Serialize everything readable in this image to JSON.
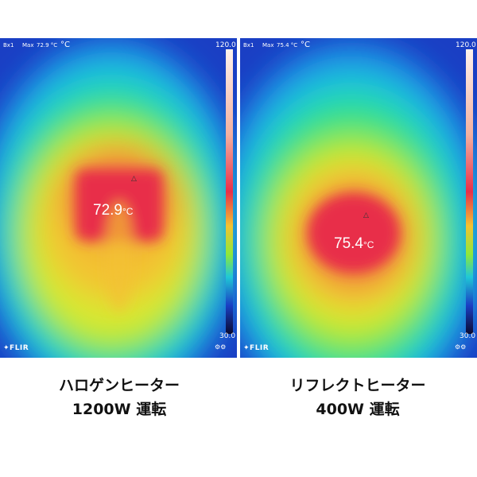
{
  "panels": [
    {
      "box_label": "Bx1",
      "max_label": "Max",
      "max_value": "72.9 °C",
      "unit_symbol": "°C",
      "scale_max": "120.0",
      "scale_min": "30.0",
      "logo": "FLIR",
      "readout": "72.9",
      "readout_unit": "°C"
    },
    {
      "box_label": "Bx1",
      "max_label": "Max",
      "max_value": "75.4 °C",
      "unit_symbol": "°C",
      "scale_max": "120.0",
      "scale_min": "30.0",
      "logo": "FLIR",
      "readout": "75.4",
      "readout_unit": "°C"
    }
  ],
  "captions": [
    {
      "line1": "ハロゲンヒーター",
      "line2": "1200W 運転"
    },
    {
      "line1": "リフレクトヒーター",
      "line2": "400W 運転"
    }
  ]
}
